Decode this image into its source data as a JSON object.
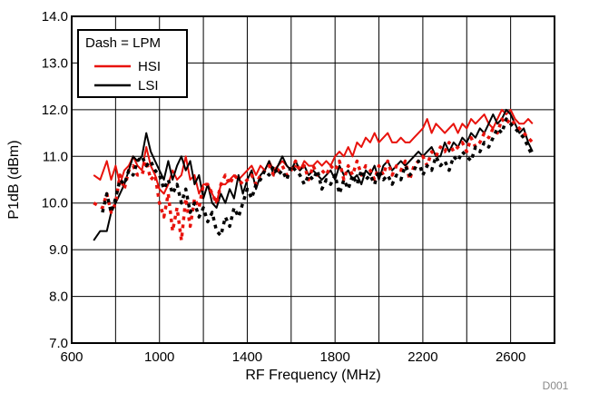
{
  "chart_data": {
    "type": "line",
    "title": "",
    "xlabel": "RF Frequency (MHz)",
    "ylabel": "P1dB (dBm)",
    "xlim": [
      600,
      2800
    ],
    "ylim": [
      7.0,
      14.0
    ],
    "x_ticks": [
      600,
      1000,
      1400,
      1800,
      2200,
      2600
    ],
    "y_ticks": [
      "7.0",
      "8.0",
      "9.0",
      "10.0",
      "11.0",
      "12.0",
      "13.0",
      "14.0"
    ],
    "grid": true,
    "legend": {
      "placement": "top-left",
      "header": "Dash = LPM",
      "entries": [
        "HSI",
        "LSI"
      ]
    },
    "figure_id": "D001",
    "colors": {
      "HSI": "#e8120c",
      "LSI": "#000000",
      "grid": "#000000"
    },
    "series": [
      {
        "name": "HSI",
        "style": "solid",
        "x": [
          700,
          730,
          760,
          780,
          800,
          820,
          840,
          860,
          880,
          900,
          920,
          940,
          960,
          980,
          1000,
          1020,
          1040,
          1060,
          1080,
          1100,
          1120,
          1140,
          1160,
          1180,
          1200,
          1220,
          1240,
          1260,
          1280,
          1300,
          1320,
          1340,
          1360,
          1380,
          1400,
          1420,
          1440,
          1460,
          1480,
          1500,
          1520,
          1540,
          1560,
          1580,
          1600,
          1620,
          1640,
          1660,
          1680,
          1700,
          1720,
          1740,
          1760,
          1780,
          1800,
          1820,
          1840,
          1860,
          1880,
          1900,
          1920,
          1940,
          1960,
          1980,
          2000,
          2020,
          2040,
          2060,
          2080,
          2100,
          2120,
          2140,
          2160,
          2180,
          2200,
          2220,
          2240,
          2260,
          2280,
          2300,
          2320,
          2340,
          2360,
          2380,
          2400,
          2420,
          2440,
          2460,
          2480,
          2500,
          2520,
          2540,
          2560,
          2580,
          2600,
          2620,
          2640,
          2660,
          2680,
          2700
        ],
        "y": [
          10.6,
          10.5,
          10.9,
          10.5,
          10.8,
          10.4,
          10.7,
          10.8,
          11.0,
          10.8,
          10.7,
          11.2,
          10.8,
          10.6,
          10.3,
          10.2,
          10.4,
          10.7,
          10.5,
          10.6,
          11.0,
          10.5,
          10.6,
          10.2,
          10.4,
          10.4,
          10.2,
          10.0,
          10.4,
          10.4,
          10.5,
          10.6,
          10.5,
          10.6,
          10.7,
          10.8,
          10.6,
          10.8,
          10.7,
          10.9,
          10.7,
          10.8,
          10.9,
          10.8,
          10.7,
          10.8,
          10.7,
          10.9,
          10.8,
          10.8,
          10.9,
          10.8,
          10.9,
          10.8,
          11.0,
          11.1,
          11.0,
          11.2,
          11.0,
          11.3,
          11.2,
          11.4,
          11.3,
          11.5,
          11.3,
          11.4,
          11.5,
          11.3,
          11.3,
          11.4,
          11.3,
          11.3,
          11.4,
          11.5,
          11.6,
          11.8,
          11.5,
          11.7,
          11.6,
          11.5,
          11.6,
          11.7,
          11.5,
          11.7,
          11.6,
          11.8,
          11.7,
          11.8,
          11.9,
          11.7,
          11.6,
          11.8,
          12.0,
          11.9,
          12.0,
          11.8,
          11.7,
          11.7,
          11.8,
          11.7
        ]
      },
      {
        "name": "LSI",
        "style": "solid",
        "x": [
          700,
          730,
          760,
          780,
          800,
          820,
          840,
          860,
          880,
          900,
          920,
          940,
          960,
          980,
          1000,
          1020,
          1040,
          1060,
          1080,
          1100,
          1120,
          1140,
          1160,
          1180,
          1200,
          1220,
          1240,
          1260,
          1280,
          1300,
          1320,
          1340,
          1360,
          1380,
          1400,
          1420,
          1440,
          1460,
          1480,
          1500,
          1520,
          1540,
          1560,
          1580,
          1600,
          1620,
          1640,
          1660,
          1680,
          1700,
          1720,
          1740,
          1760,
          1780,
          1800,
          1820,
          1840,
          1860,
          1880,
          1900,
          1920,
          1940,
          1960,
          1980,
          2000,
          2020,
          2040,
          2060,
          2080,
          2100,
          2120,
          2140,
          2160,
          2180,
          2200,
          2220,
          2240,
          2260,
          2280,
          2300,
          2320,
          2340,
          2360,
          2380,
          2400,
          2420,
          2440,
          2460,
          2480,
          2500,
          2520,
          2540,
          2560,
          2580,
          2600,
          2620,
          2640,
          2660,
          2680,
          2700
        ],
        "y": [
          9.2,
          9.4,
          9.4,
          9.8,
          10.0,
          10.2,
          10.4,
          10.7,
          11.0,
          10.9,
          11.0,
          11.5,
          11.1,
          10.9,
          10.7,
          10.5,
          10.9,
          10.5,
          10.8,
          11.0,
          10.7,
          10.9,
          10.4,
          10.6,
          10.1,
          10.4,
          10.0,
          9.9,
          10.2,
          10.0,
          10.3,
          10.1,
          10.6,
          10.2,
          10.5,
          10.7,
          10.3,
          10.6,
          10.7,
          10.9,
          10.6,
          10.8,
          11.0,
          10.8,
          10.7,
          10.9,
          10.7,
          10.8,
          10.6,
          10.7,
          10.6,
          10.5,
          10.6,
          10.7,
          10.5,
          10.8,
          10.6,
          10.7,
          10.5,
          10.6,
          10.4,
          10.7,
          10.6,
          10.8,
          10.5,
          10.8,
          10.9,
          10.7,
          10.8,
          10.9,
          10.8,
          10.9,
          11.0,
          11.1,
          11.0,
          11.1,
          11.2,
          11.0,
          11.0,
          11.3,
          11.1,
          11.3,
          11.2,
          11.4,
          11.3,
          11.5,
          11.4,
          11.6,
          11.5,
          11.7,
          11.9,
          11.7,
          11.8,
          12.0,
          11.9,
          11.7,
          11.5,
          11.6,
          11.3,
          11.1
        ]
      },
      {
        "name": "HSI",
        "style": "dash",
        "x": [
          700,
          740,
          760,
          780,
          800,
          820,
          840,
          860,
          880,
          900,
          920,
          940,
          960,
          980,
          1000,
          1020,
          1040,
          1060,
          1080,
          1100,
          1120,
          1140,
          1160,
          1180,
          1200,
          1220,
          1240,
          1260,
          1280,
          1300,
          1320,
          1340,
          1360,
          1380,
          1400,
          1420,
          1440,
          1460,
          1480,
          1500,
          1520,
          1540,
          1560,
          1580,
          1600,
          1620,
          1640,
          1660,
          1680,
          1700,
          1720,
          1740,
          1760,
          1780,
          1800,
          1820,
          1840,
          1860,
          1880,
          1900,
          1920,
          1940,
          1960,
          1980,
          2000,
          2020,
          2040,
          2060,
          2080,
          2100,
          2120,
          2140,
          2160,
          2180,
          2200,
          2220,
          2240,
          2260,
          2280,
          2300,
          2320,
          2340,
          2360,
          2380,
          2400,
          2420,
          2440,
          2460,
          2480,
          2500,
          2520,
          2540,
          2560,
          2580,
          2600,
          2620,
          2640,
          2660,
          2680,
          2700
        ],
        "y": [
          10.0,
          9.9,
          10.2,
          9.8,
          10.0,
          10.6,
          10.3,
          10.7,
          10.8,
          10.6,
          10.6,
          10.9,
          10.5,
          10.6,
          10.0,
          9.7,
          10.2,
          9.4,
          9.9,
          9.2,
          10.1,
          9.5,
          10.1,
          9.9,
          10.4,
          10.4,
          10.2,
          10.0,
          10.4,
          10.6,
          10.4,
          10.6,
          10.5,
          10.4,
          10.5,
          10.6,
          10.4,
          10.6,
          10.7,
          10.8,
          10.6,
          10.7,
          10.8,
          10.6,
          10.7,
          10.9,
          10.7,
          10.8,
          10.5,
          10.8,
          10.6,
          10.7,
          10.6,
          10.8,
          10.7,
          10.9,
          10.5,
          10.8,
          10.6,
          10.9,
          10.6,
          10.8,
          10.7,
          10.5,
          10.8,
          10.6,
          10.9,
          10.6,
          10.8,
          10.7,
          10.9,
          10.5,
          10.8,
          10.9,
          11.0,
          10.8,
          11.1,
          11.0,
          11.2,
          11.1,
          11.3,
          11.1,
          11.2,
          11.3,
          11.1,
          11.4,
          11.2,
          11.3,
          11.5,
          11.4,
          11.6,
          11.5,
          11.8,
          11.7,
          11.8,
          11.7,
          11.6,
          11.5,
          11.4,
          11.3
        ]
      },
      {
        "name": "LSI",
        "style": "dash",
        "x": [
          740,
          760,
          780,
          800,
          820,
          840,
          860,
          880,
          900,
          920,
          940,
          960,
          980,
          1000,
          1020,
          1040,
          1060,
          1080,
          1100,
          1120,
          1140,
          1160,
          1180,
          1200,
          1220,
          1240,
          1260,
          1280,
          1300,
          1320,
          1340,
          1360,
          1380,
          1400,
          1420,
          1440,
          1460,
          1480,
          1500,
          1520,
          1540,
          1560,
          1580,
          1600,
          1620,
          1640,
          1660,
          1680,
          1700,
          1720,
          1740,
          1760,
          1780,
          1800,
          1820,
          1840,
          1860,
          1880,
          1900,
          1920,
          1940,
          1960,
          1980,
          2000,
          2020,
          2040,
          2060,
          2080,
          2100,
          2120,
          2140,
          2160,
          2180,
          2200,
          2220,
          2240,
          2260,
          2280,
          2300,
          2320,
          2340,
          2360,
          2380,
          2400,
          2420,
          2440,
          2460,
          2480,
          2500,
          2520,
          2540,
          2560,
          2580,
          2600,
          2620,
          2640,
          2660,
          2680,
          2700
        ],
        "y": [
          9.8,
          10.2,
          9.8,
          10.1,
          10.5,
          10.4,
          10.7,
          10.6,
          10.9,
          11.0,
          10.8,
          10.9,
          10.7,
          10.6,
          10.3,
          10.5,
          10.2,
          10.4,
          10.0,
          10.3,
          9.8,
          10.0,
          9.7,
          9.9,
          9.6,
          9.8,
          9.4,
          9.3,
          9.7,
          9.5,
          9.9,
          9.7,
          10.0,
          10.3,
          10.1,
          10.4,
          10.5,
          10.7,
          10.6,
          10.8,
          10.6,
          10.7,
          10.5,
          10.8,
          10.7,
          10.6,
          10.4,
          10.6,
          10.5,
          10.7,
          10.3,
          10.5,
          10.4,
          10.6,
          10.2,
          10.5,
          10.3,
          10.6,
          10.4,
          10.7,
          10.5,
          10.6,
          10.4,
          10.7,
          10.5,
          10.6,
          10.4,
          10.6,
          10.5,
          10.8,
          10.6,
          10.7,
          10.9,
          10.6,
          10.8,
          10.7,
          11.0,
          10.8,
          10.9,
          10.7,
          11.0,
          10.9,
          11.1,
          11.0,
          10.9,
          11.2,
          11.1,
          11.3,
          11.2,
          11.4,
          11.6,
          11.5,
          11.8,
          11.7,
          11.6,
          11.5,
          11.4,
          11.2,
          11.0
        ]
      }
    ]
  }
}
